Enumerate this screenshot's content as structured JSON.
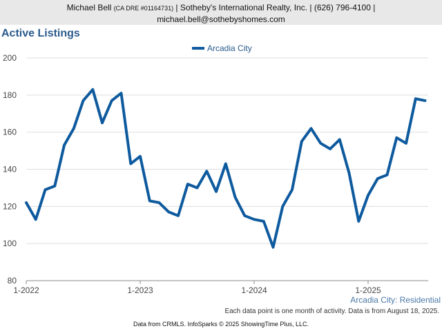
{
  "header": {
    "agent_name": "Michael Bell",
    "license": "(CA DRE #01164731)",
    "company_phone": "| Sotheby's International Realty, Inc. | (626) 796-4100 |",
    "email": "michael.bell@sothebyshomes.com"
  },
  "footer": {
    "note": "Each data point is one month of activity. Data is from August 18, 2025.",
    "source": "Data from CRMLS. InfoSparks © 2025 ShowingTime Plus, LLC."
  },
  "chart_data": {
    "type": "line",
    "title": "Active Listings",
    "xlabel": "",
    "ylabel": "",
    "ylim": [
      80,
      200
    ],
    "yticks": [
      80,
      100,
      120,
      140,
      160,
      180,
      200
    ],
    "xticks": [
      "1-2022",
      "1-2023",
      "1-2024",
      "1-2025"
    ],
    "legend_position": "top-center",
    "series_caption": "Arcadia City: Residential",
    "colors": {
      "line": "#0e5a9e",
      "grid": "#dddddd",
      "axis": "#888888"
    },
    "x": [
      "2022-01",
      "2022-02",
      "2022-03",
      "2022-04",
      "2022-05",
      "2022-06",
      "2022-07",
      "2022-08",
      "2022-09",
      "2022-10",
      "2022-11",
      "2022-12",
      "2023-01",
      "2023-02",
      "2023-03",
      "2023-04",
      "2023-05",
      "2023-06",
      "2023-07",
      "2023-08",
      "2023-09",
      "2023-10",
      "2023-11",
      "2023-12",
      "2024-01",
      "2024-02",
      "2024-03",
      "2024-04",
      "2024-05",
      "2024-06",
      "2024-07",
      "2024-08",
      "2024-09",
      "2024-10",
      "2024-11",
      "2024-12",
      "2025-01",
      "2025-02",
      "2025-03",
      "2025-04",
      "2025-05",
      "2025-06",
      "2025-07"
    ],
    "series": [
      {
        "name": "Arcadia City",
        "values": [
          122,
          113,
          129,
          131,
          153,
          162,
          177,
          183,
          165,
          177,
          181,
          143,
          147,
          123,
          122,
          117,
          115,
          132,
          130,
          139,
          128,
          143,
          125,
          115,
          113,
          112,
          98,
          120,
          129,
          155,
          162,
          154,
          151,
          156,
          138,
          112,
          126,
          135,
          137,
          157,
          154,
          178,
          177
        ]
      }
    ]
  }
}
